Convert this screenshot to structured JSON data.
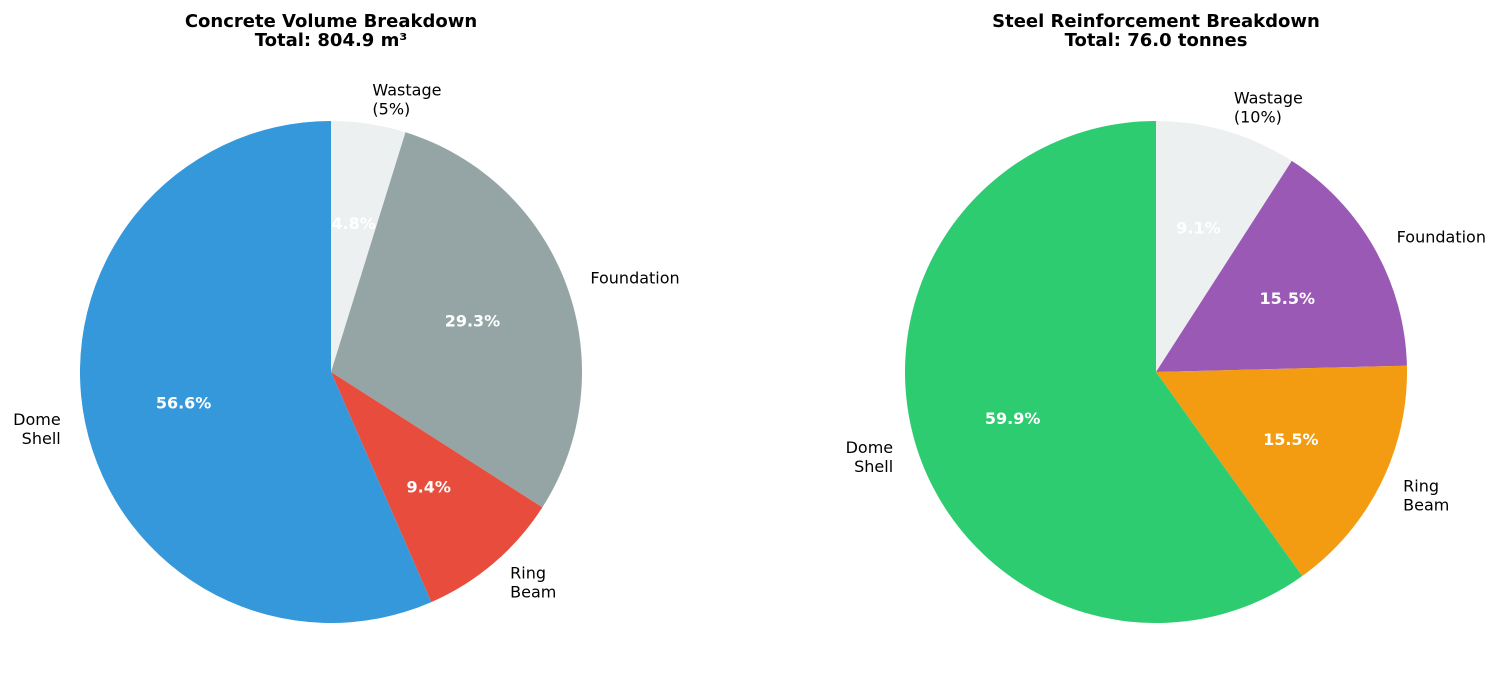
{
  "chart_data": [
    {
      "type": "pie",
      "title": "Concrete Volume Breakdown\nTotal: 804.9 m³",
      "start_angle_deg": 90,
      "direction": "clockwise",
      "slices": [
        {
          "label": "Wastage\n(5%)",
          "pct_label": "4.8%",
          "value": 4.8,
          "color": "#ecf0f1"
        },
        {
          "label": "Foundation",
          "pct_label": "29.3%",
          "value": 29.3,
          "color": "#95a5a6"
        },
        {
          "label": "Ring\nBeam",
          "pct_label": "9.4%",
          "value": 9.4,
          "color": "#e74c3c"
        },
        {
          "label": "Dome\nShell",
          "pct_label": "56.6%",
          "value": 56.6,
          "color": "#3498db"
        }
      ]
    },
    {
      "type": "pie",
      "title": "Steel Reinforcement Breakdown\nTotal: 76.0 tonnes",
      "start_angle_deg": 90,
      "direction": "clockwise",
      "slices": [
        {
          "label": "Wastage\n(10%)",
          "pct_label": "9.1%",
          "value": 9.1,
          "color": "#ecf0f1"
        },
        {
          "label": "Foundation",
          "pct_label": "15.5%",
          "value": 15.5,
          "color": "#9b59b6"
        },
        {
          "label": "Ring\nBeam",
          "pct_label": "15.5%",
          "value": 15.5,
          "color": "#f39c12"
        },
        {
          "label": "Dome\nShell",
          "pct_label": "59.9%",
          "value": 59.9,
          "color": "#2ecc71"
        }
      ]
    }
  ]
}
